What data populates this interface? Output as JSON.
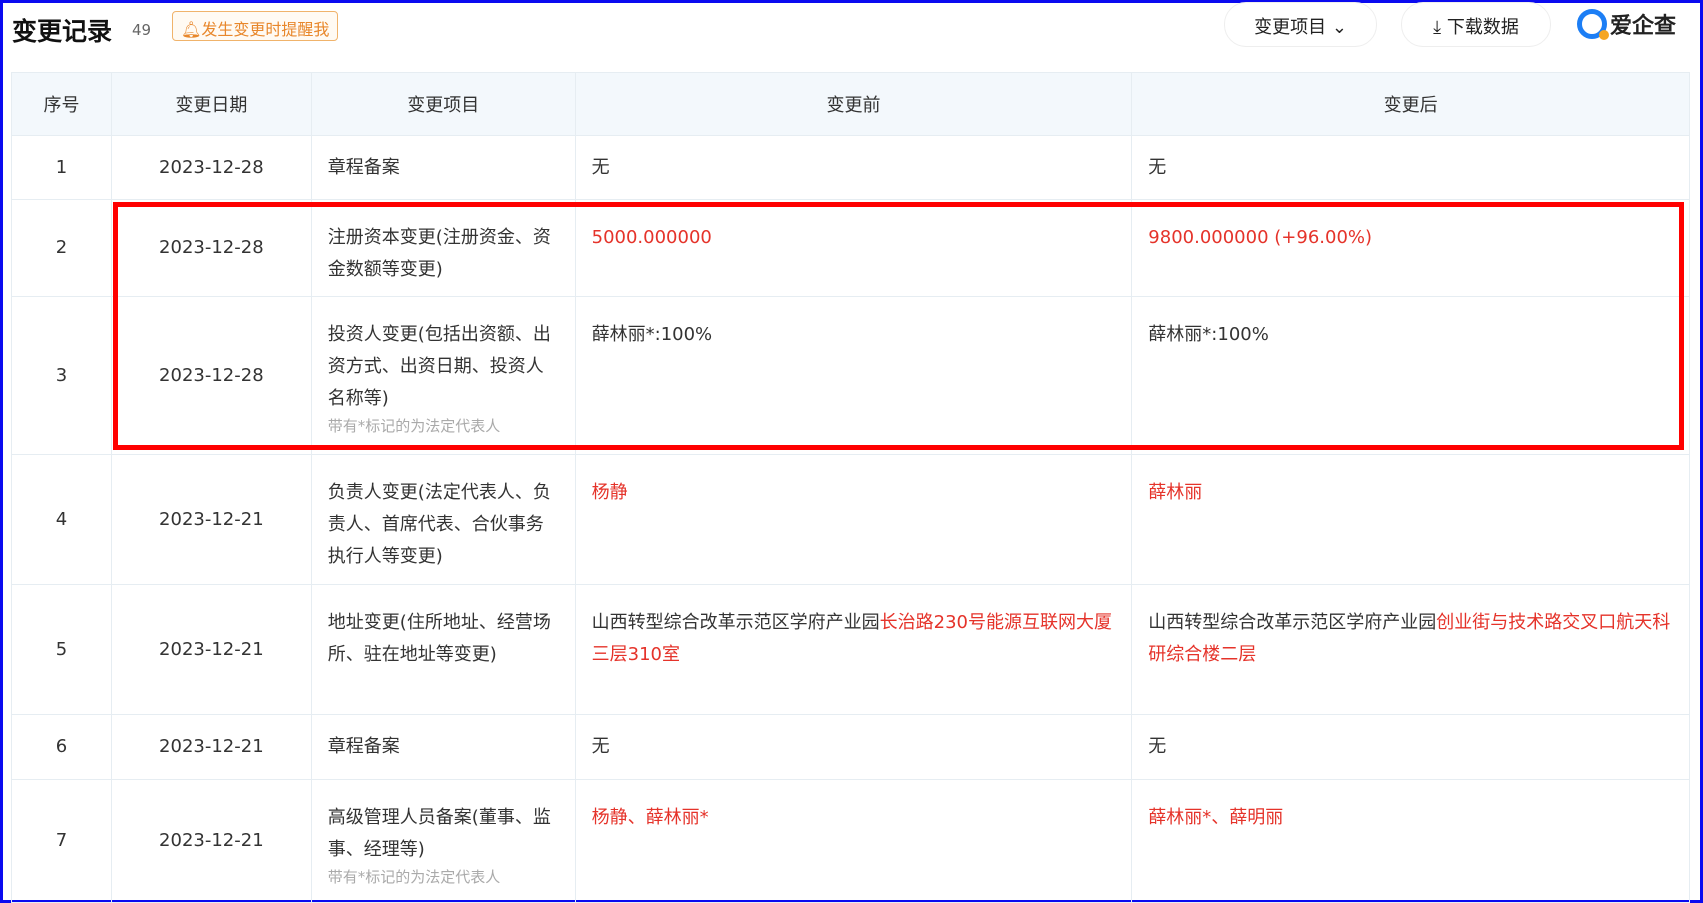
{
  "header": {
    "title": "变更记录",
    "count": "49",
    "remind_label": "发生变更时提醒我",
    "filter_label": "变更项目",
    "download_label": "下载数据",
    "logo_text": "爱企查"
  },
  "columns": [
    "序号",
    "变更日期",
    "变更项目",
    "变更前",
    "变更后"
  ],
  "rows": [
    {
      "no": "1",
      "date": "2023-12-28",
      "item": "章程备案",
      "note": "",
      "before": [
        {
          "t": "无",
          "red": false
        }
      ],
      "after": [
        {
          "t": "无",
          "red": false
        }
      ]
    },
    {
      "no": "2",
      "date": "2023-12-28",
      "item": "注册资本变更(注册资金、资金数额等变更)",
      "note": "",
      "before": [
        {
          "t": "5000.000000",
          "red": true
        }
      ],
      "after": [
        {
          "t": "9800.000000 (+96.00%)",
          "red": true
        }
      ]
    },
    {
      "no": "3",
      "date": "2023-12-28",
      "item": "投资人变更(包括出资额、出资方式、出资日期、投资人名称等)",
      "note": "带有*标记的为法定代表人",
      "before": [
        {
          "t": "薛林丽*:100%",
          "red": false
        }
      ],
      "after": [
        {
          "t": "薛林丽*:100%",
          "red": false
        }
      ]
    },
    {
      "no": "4",
      "date": "2023-12-21",
      "item": "负责人变更(法定代表人、负责人、首席代表、合伙事务执行人等变更)",
      "note": "",
      "before": [
        {
          "t": "杨静",
          "red": true
        }
      ],
      "after": [
        {
          "t": "薛林丽",
          "red": true
        }
      ]
    },
    {
      "no": "5",
      "date": "2023-12-21",
      "item": "地址变更(住所地址、经营场所、驻在地址等变更)",
      "note": "",
      "before": [
        {
          "t": "山西转型综合改革示范区学府产业园",
          "red": false
        },
        {
          "t": "长治路230号能源互联网大厦三层310室",
          "red": true
        }
      ],
      "after": [
        {
          "t": "山西转型综合改革示范区学府产业园",
          "red": false
        },
        {
          "t": "创业街与技术路交叉口航天科研综合楼二层",
          "red": true
        }
      ]
    },
    {
      "no": "6",
      "date": "2023-12-21",
      "item": "章程备案",
      "note": "",
      "before": [
        {
          "t": "无",
          "red": false
        }
      ],
      "after": [
        {
          "t": "无",
          "red": false
        }
      ]
    },
    {
      "no": "7",
      "date": "2023-12-21",
      "item": "高级管理人员备案(董事、监事、经理等)",
      "note": "带有*标记的为法定代表人",
      "before": [
        {
          "t": "杨静、薛林丽*",
          "red": true
        }
      ],
      "after": [
        {
          "t": "薛林丽*、薛明丽",
          "red": true
        }
      ]
    }
  ],
  "colors": {
    "highlight_box": "#ff0000",
    "changed_text": "#e5332a",
    "frame": "#0a0af0"
  }
}
